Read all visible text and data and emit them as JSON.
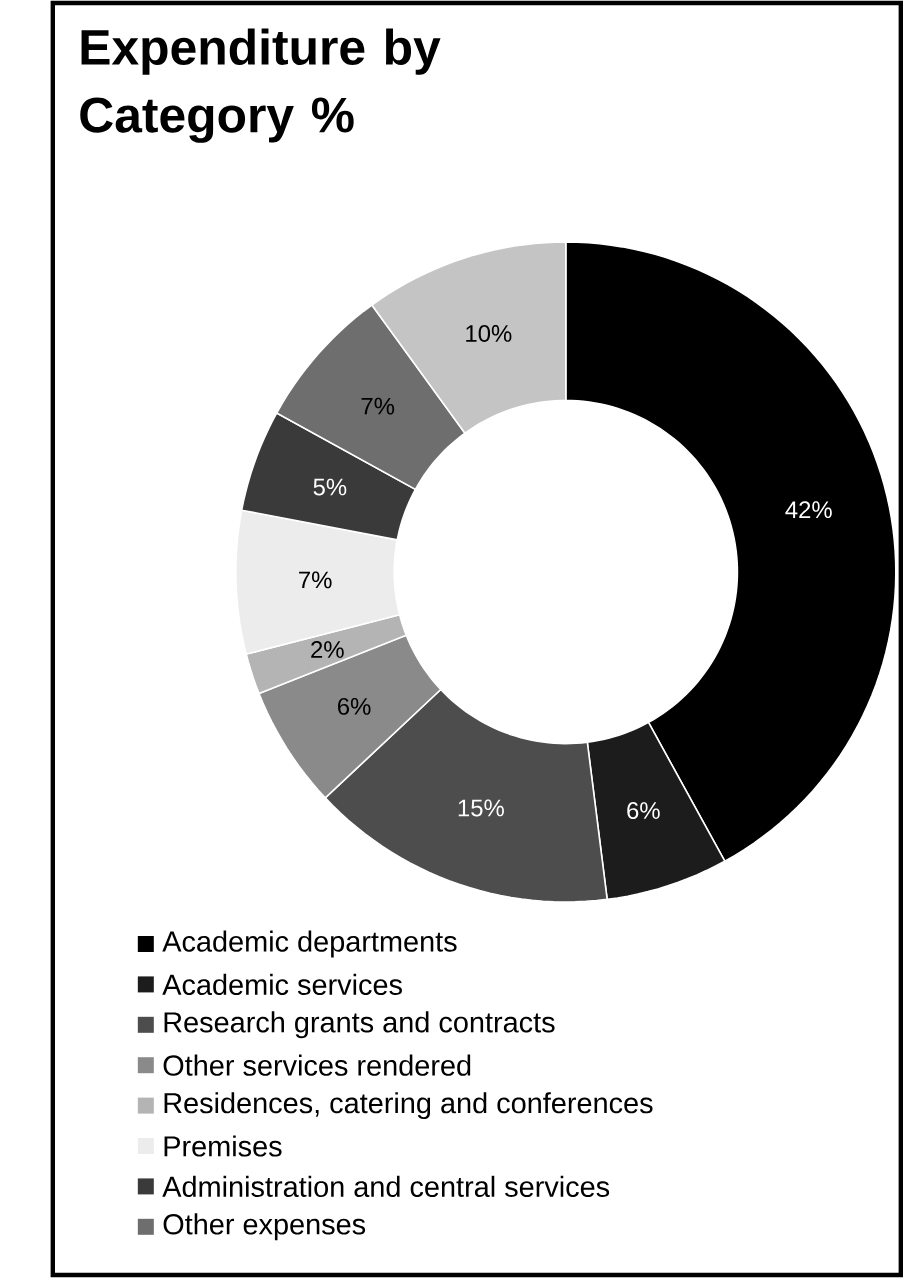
{
  "chart_data": {
    "type": "donut",
    "title": "Expenditure by Category %",
    "categories": [
      "Academic departments",
      "Academic services",
      "Research grants and contracts",
      "Other services rendered",
      "Residences, catering and conferences",
      "Premises",
      "Administration and central services",
      "Other expenses",
      null
    ],
    "values": [
      42,
      6,
      15,
      6,
      2,
      7,
      5,
      7,
      10
    ],
    "value_labels": [
      "42%",
      "6%",
      "15%",
      "6%",
      "2%",
      "7%",
      "5%",
      "7%",
      "10%"
    ],
    "colors": [
      "#000000",
      "#1c1c1c",
      "#4d4d4d",
      "#8a8a8a",
      "#b4b4b4",
      "#ececec",
      "#3a3a3a",
      "#6e6e6e",
      "#c4c4c4"
    ],
    "legend": "bottom"
  }
}
